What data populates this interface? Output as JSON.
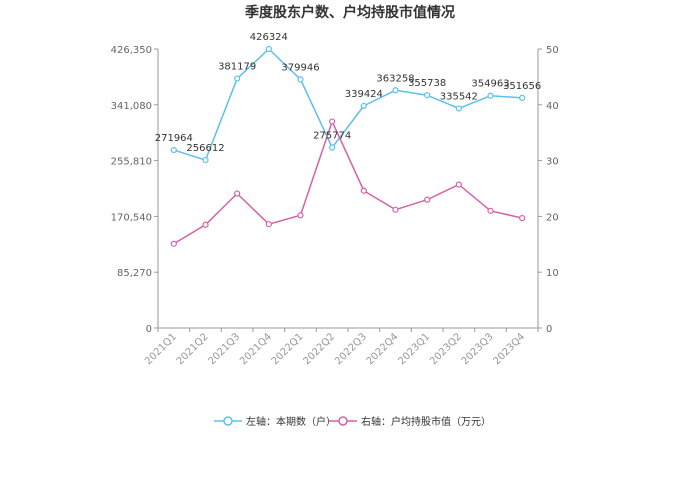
{
  "chart_data": {
    "type": "line",
    "title": "季度股东户数、户均持股市值情况",
    "categories": [
      "2021Q1",
      "2021Q2",
      "2021Q3",
      "2021Q4",
      "2022Q1",
      "2022Q2",
      "2022Q3",
      "2022Q4",
      "2023Q1",
      "2023Q2",
      "2023Q3",
      "2023Q4"
    ],
    "left_axis": {
      "ticks": [
        "0",
        "85,270",
        "170,540",
        "255,810",
        "341,080",
        "426,350"
      ],
      "ylim": [
        0,
        426350
      ]
    },
    "right_axis": {
      "ticks": [
        "0",
        "10",
        "20",
        "30",
        "40",
        "50"
      ],
      "ylim": [
        0,
        50
      ]
    },
    "series": [
      {
        "name": "左轴：本期数（户）",
        "axis": "left",
        "color": "#5bc0eb",
        "values": [
          271964,
          256612,
          381179,
          426324,
          379946,
          275774,
          339424,
          363258,
          355738,
          335542,
          354963,
          351656
        ],
        "labels": [
          "271964",
          "256612",
          "381179",
          "426324",
          "379946",
          "275774",
          "339424",
          "363258",
          "355738",
          "335542",
          "354963",
          "351656"
        ]
      },
      {
        "name": "右轴：户均持股市值（万元）",
        "axis": "right",
        "color": "#d562a8",
        "values": [
          15.1,
          18.5,
          24.1,
          18.6,
          20.2,
          37.0,
          24.6,
          21.2,
          23.0,
          25.7,
          21.0,
          19.7
        ]
      }
    ],
    "grid": false,
    "legend_position": "bottom-center"
  }
}
